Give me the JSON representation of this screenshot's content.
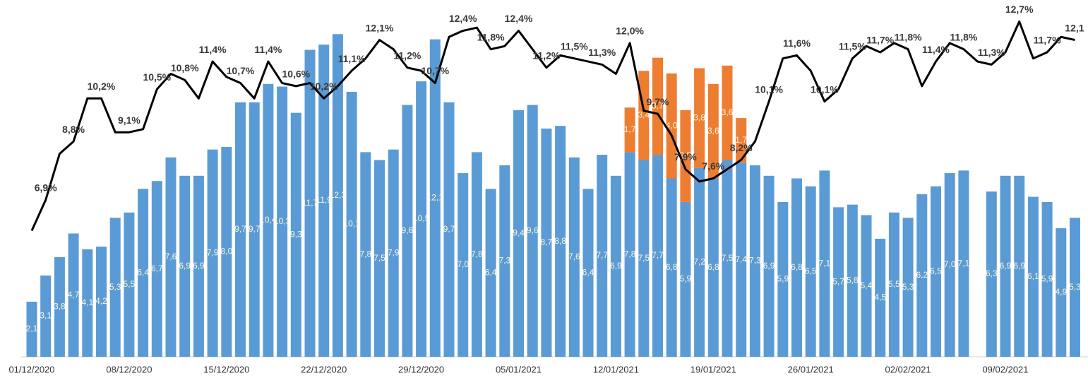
{
  "chart_data": {
    "type": "bar",
    "stacked": true,
    "categories": [
      "01/12/2020",
      null,
      null,
      null,
      null,
      null,
      null,
      "08/12/2020",
      null,
      null,
      null,
      null,
      null,
      null,
      "15/12/2020",
      null,
      null,
      null,
      null,
      null,
      null,
      "22/12/2020",
      null,
      null,
      null,
      null,
      null,
      null,
      "29/12/2020",
      null,
      null,
      null,
      null,
      null,
      null,
      "05/01/2021",
      null,
      null,
      null,
      null,
      null,
      null,
      "12/01/2021",
      null,
      null,
      null,
      null,
      null,
      null,
      "19/01/2021",
      null,
      null,
      null,
      null,
      null,
      null,
      "26/01/2021",
      null,
      null,
      null,
      null,
      null,
      null,
      "02/02/2021",
      null,
      null,
      null,
      null,
      null,
      null,
      "09/02/2021",
      null,
      null,
      null,
      null,
      null
    ],
    "ylim": [
      0,
      13.6
    ],
    "y2lim": [
      1.8,
      13.4
    ],
    "series": [
      {
        "type": "bar",
        "color": "#5b9bd5",
        "values": [
          2.1,
          3.1,
          3.8,
          4.7,
          4.1,
          4.2,
          5.3,
          5.5,
          6.4,
          6.7,
          7.6,
          6.9,
          6.9,
          7.9,
          8.0,
          9.7,
          9.7,
          10.4,
          10.3,
          9.3,
          11.7,
          11.9,
          12.3,
          10.1,
          7.8,
          7.5,
          7.9,
          9.6,
          10.5,
          12.1,
          9.7,
          7.0,
          7.8,
          6.4,
          7.3,
          9.4,
          9.6,
          8.7,
          8.8,
          7.6,
          6.4,
          7.7,
          6.9,
          7.8,
          7.5,
          7.7,
          6.8,
          5.9,
          7.2,
          6.8,
          7.5,
          7.4,
          7.3,
          6.9,
          5.9,
          6.8,
          6.5,
          7.1,
          5.7,
          5.8,
          5.4,
          4.5,
          5.5,
          5.3,
          6.2,
          6.5,
          7.0,
          7.1,
          null,
          6.3,
          6.9,
          6.9,
          6.1,
          5.9,
          4.9,
          5.3
        ],
        "value_labels": [
          "2,1",
          "3,1",
          "3,8",
          "4,7",
          "4,1",
          "4,2",
          "5,3",
          "5,5",
          "6,4",
          "6,7",
          "7,6",
          "6,9",
          "6,9",
          "7,9",
          "8,0",
          "9,7",
          "9,7",
          "10,4",
          "10,3",
          "9,3",
          "11,7",
          "11,9",
          "12,3",
          "10,1",
          "7,8",
          "7,5",
          "7,9",
          "9,6",
          "10,5",
          "12,1",
          "9,7",
          "7,0",
          "7,8",
          "6,4",
          "7,3",
          "9,4",
          "9,6",
          "8,7",
          "8,8",
          "7,6",
          "6,4",
          "7,7",
          "6,9",
          "7,8",
          "7,5",
          "7,7",
          "6,8",
          "5,9",
          "7,2",
          "6,8",
          "7,5",
          "7,4",
          "7,3",
          "6,9",
          "5,9",
          "6,8",
          "6,5",
          "7,1",
          "5,7",
          "5,8",
          "5,4",
          "4,5",
          "5,5",
          "5,3",
          "6,2",
          "6,5",
          "7,0",
          "7,1",
          null,
          "6,3",
          "6,9",
          "6,9",
          "6,1",
          "5,9",
          "4,9",
          "5,3"
        ]
      },
      {
        "type": "bar",
        "color": "#ed7d31",
        "values": [
          null,
          null,
          null,
          null,
          null,
          null,
          null,
          null,
          null,
          null,
          null,
          null,
          null,
          null,
          null,
          null,
          null,
          null,
          null,
          null,
          null,
          null,
          null,
          null,
          null,
          null,
          null,
          null,
          null,
          null,
          null,
          null,
          null,
          null,
          null,
          null,
          null,
          null,
          null,
          null,
          null,
          null,
          null,
          1.7,
          3.4,
          3.7,
          4.0,
          3.5,
          3.8,
          3.6,
          3.6,
          1.7,
          null,
          null,
          null,
          null,
          null,
          null,
          null,
          null,
          null,
          null,
          null,
          null,
          null,
          null,
          null,
          null,
          null,
          null,
          null,
          null,
          null,
          null,
          null,
          null
        ],
        "value_labels": [
          null,
          null,
          null,
          null,
          null,
          null,
          null,
          null,
          null,
          null,
          null,
          null,
          null,
          null,
          null,
          null,
          null,
          null,
          null,
          null,
          null,
          null,
          null,
          null,
          null,
          null,
          null,
          null,
          null,
          null,
          null,
          null,
          null,
          null,
          null,
          null,
          null,
          null,
          null,
          null,
          null,
          null,
          null,
          "1,7",
          "3,4",
          "3,7",
          "4,0",
          "3,5",
          "3,8",
          "3,6",
          "3,6",
          "1,7",
          null,
          null,
          null,
          null,
          null,
          null,
          null,
          null,
          null,
          null,
          null,
          null,
          null,
          null,
          null,
          null,
          null,
          null,
          null,
          null,
          null,
          null,
          null,
          null
        ]
      },
      {
        "type": "line",
        "axis": "y2",
        "color": "#000000",
        "values": [
          5.9,
          6.9,
          8.4,
          8.8,
          10.2,
          10.2,
          9.1,
          9.1,
          9.2,
          10.5,
          11.0,
          10.8,
          10.2,
          11.4,
          10.9,
          10.7,
          10.2,
          11.4,
          10.7,
          10.6,
          10.7,
          10.2,
          10.6,
          11.1,
          11.5,
          12.1,
          11.8,
          11.2,
          11.1,
          10.7,
          12.2,
          12.4,
          12.5,
          11.8,
          11.9,
          12.4,
          11.8,
          11.2,
          11.6,
          11.5,
          11.4,
          11.3,
          11.0,
          12.0,
          9.8,
          9.7,
          9.0,
          7.9,
          7.5,
          7.6,
          7.9,
          8.2,
          8.8,
          10.1,
          11.5,
          11.6,
          11.1,
          10.1,
          10.5,
          11.5,
          11.9,
          11.7,
          12.0,
          11.8,
          10.6,
          11.4,
          12.0,
          11.8,
          11.4,
          11.3,
          11.7,
          12.7,
          11.5,
          11.7,
          12.2,
          12.1
        ],
        "value_labels": [
          null,
          "6,9%",
          null,
          "8,8%",
          null,
          "10,2%",
          null,
          "9,1%",
          null,
          "10,5%",
          null,
          "10,8%",
          null,
          "11,4%",
          null,
          "10,7%",
          null,
          "11,4%",
          null,
          "10,6%",
          null,
          "10,2%",
          null,
          "11,1%",
          null,
          "12,1%",
          null,
          "11,2%",
          null,
          "10,7%",
          null,
          "12,4%",
          null,
          "11,8%",
          null,
          "12,4%",
          null,
          "11,2%",
          null,
          "11,5%",
          null,
          "11,3%",
          null,
          "12,0%",
          null,
          "9,7%",
          null,
          "7,9%",
          null,
          "7,6%",
          null,
          "8,2%",
          null,
          "10,1%",
          null,
          "11,6%",
          null,
          "10,1%",
          null,
          "11,5%",
          null,
          "11,7%",
          null,
          "11,8%",
          null,
          "11,4%",
          null,
          "11,8%",
          null,
          "11,3%",
          null,
          "12,7%",
          null,
          "11,7%",
          null,
          "12,1"
        ]
      }
    ]
  }
}
